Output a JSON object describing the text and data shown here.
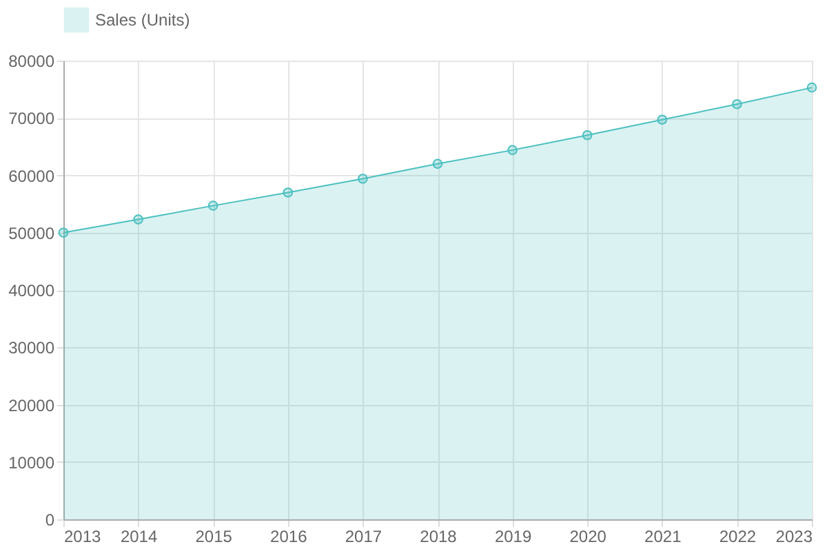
{
  "chart_data": {
    "type": "area",
    "x": [
      2013,
      2014,
      2015,
      2016,
      2017,
      2018,
      2019,
      2020,
      2021,
      2022,
      2023
    ],
    "series": [
      {
        "name": "Sales (Units)",
        "color": "#4bc0c0",
        "values": [
          50000,
          52300,
          54700,
          57000,
          59400,
          62000,
          64400,
          67000,
          69700,
          72400,
          75300
        ]
      }
    ],
    "xlim": [
      2013,
      2023
    ],
    "xticks": [
      2013,
      2014,
      2015,
      2016,
      2017,
      2018,
      2019,
      2020,
      2021,
      2022,
      2023
    ],
    "ylim": [
      0,
      80000
    ],
    "yticks": [
      0,
      10000,
      20000,
      30000,
      40000,
      50000,
      60000,
      70000,
      80000
    ],
    "grid": true,
    "legend": "top",
    "marker": "circle",
    "line_style": "solid"
  }
}
